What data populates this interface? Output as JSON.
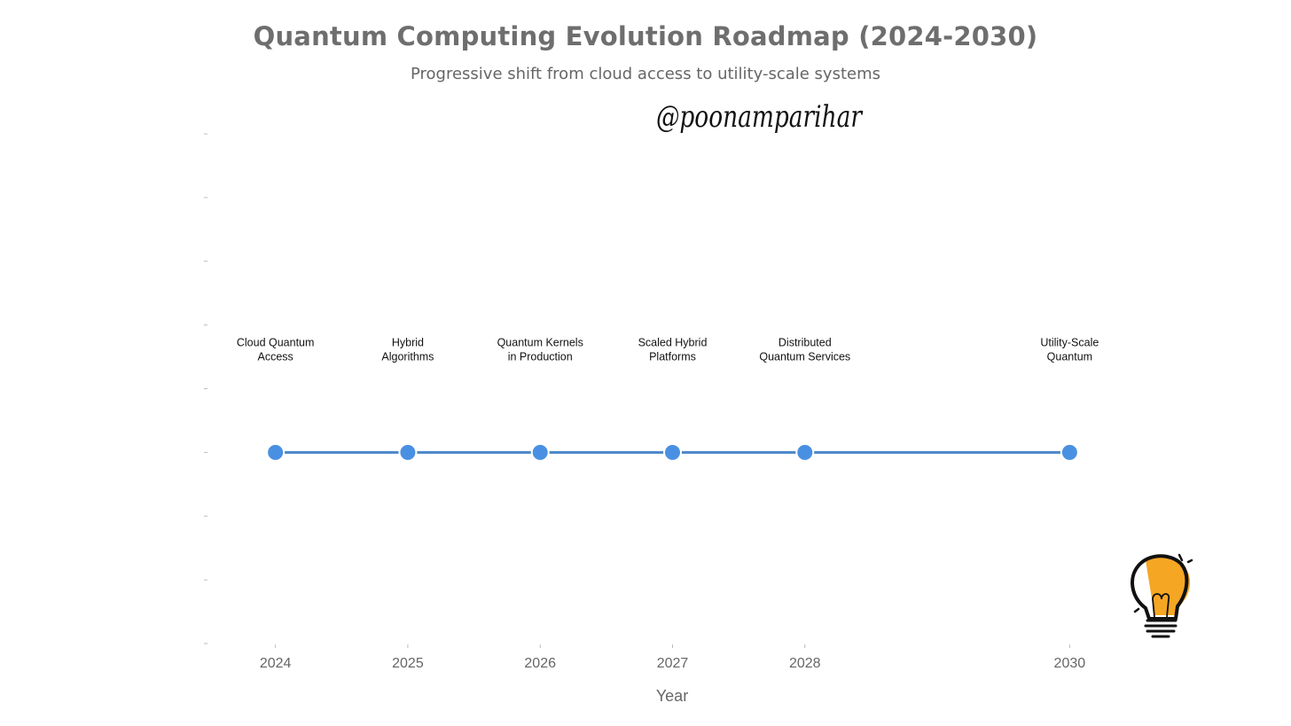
{
  "chart_data": {
    "type": "line",
    "title": "Quantum Computing Evolution Roadmap (2024-2030)",
    "subtitle": "Progressive shift from cloud access to utility-scale systems",
    "xlabel": "Year",
    "ylabel": "",
    "x": [
      2024,
      2025,
      2026,
      2027,
      2028,
      2030
    ],
    "x_ticks": [
      "2024",
      "2025",
      "2026",
      "2027",
      "2028",
      "2030"
    ],
    "xlim": [
      2023.5,
      2030.5
    ],
    "ylim": [
      0,
      8
    ],
    "y": [
      3,
      3,
      3,
      3,
      3,
      3
    ],
    "annotation_y": 4.5,
    "annotations": [
      [
        "Cloud Quantum",
        "Access"
      ],
      [
        "Hybrid",
        "Algorithms"
      ],
      [
        "Quantum Kernels",
        "in Production"
      ],
      [
        "Scaled Hybrid",
        "Platforms"
      ],
      [
        "Distributed",
        "Quantum Services"
      ],
      [
        "Utility-Scale",
        "Quantum"
      ]
    ],
    "grid": false,
    "legend": "none",
    "colors": {
      "line": "#4a86c8",
      "marker": "#4a90e2",
      "title": "#6e6e6e",
      "text": "#666666",
      "annotation": "#111111"
    }
  },
  "watermark": {
    "text": "@poonamparihar"
  },
  "logo": {
    "icon": "lightbulb-icon",
    "fill": "#f5a623"
  }
}
